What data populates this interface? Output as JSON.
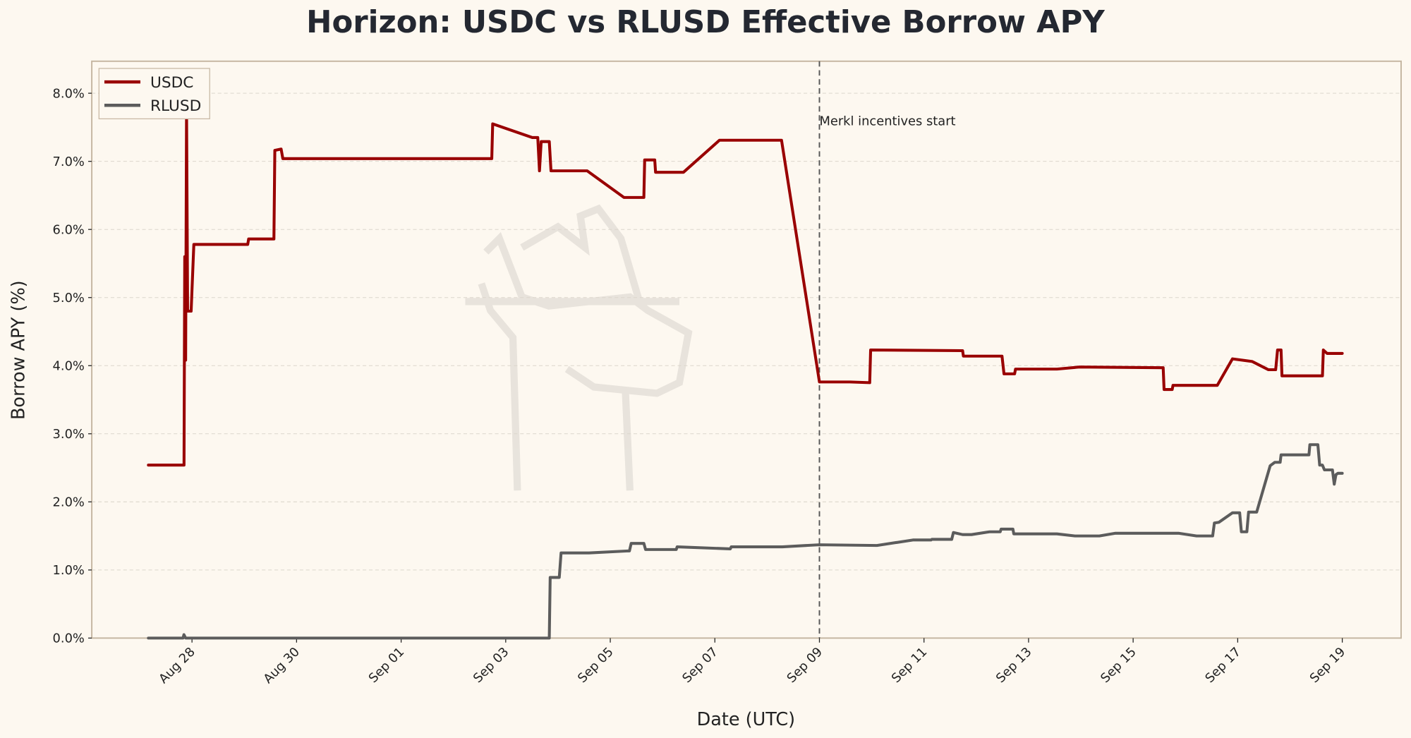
{
  "chart_data": {
    "type": "line",
    "title": "Horizon: USDC vs RLUSD Effective Borrow APY",
    "xlabel": "Date (UTC)",
    "ylabel": "Borrow APY (%)",
    "ylim": [
      0,
      8.47
    ],
    "xlim": [
      "08-26 02:00",
      "09-20 03:00"
    ],
    "grid": "y-dashed",
    "legend": "top-left",
    "x_ticks": [
      "Aug 28",
      "Aug 30",
      "Sep 01",
      "Sep 03",
      "Sep 05",
      "Sep 07",
      "Sep 09",
      "Sep 11",
      "Sep 13",
      "Sep 15",
      "Sep 17",
      "Sep 19"
    ],
    "x_tick_values": [
      "08-28 00:00",
      "08-30 00:00",
      "09-01 00:00",
      "09-03 00:00",
      "09-05 00:00",
      "09-07 00:00",
      "09-09 00:00",
      "09-11 00:00",
      "09-13 00:00",
      "09-15 00:00",
      "09-17 00:00",
      "09-19 00:00"
    ],
    "y_ticks": [
      "0.0%",
      "1.0%",
      "2.0%",
      "3.0%",
      "4.0%",
      "5.0%",
      "6.0%",
      "7.0%",
      "8.0%"
    ],
    "y_tick_values": [
      0,
      1,
      2,
      3,
      4,
      5,
      6,
      7,
      8
    ],
    "annotation": {
      "text": "Merkl incentives start",
      "x": "09-09 00:00"
    },
    "series": [
      {
        "name": "USDC",
        "color": "#990000",
        "points": [
          [
            "08-27 04:00",
            2.54
          ],
          [
            "08-27 20:20",
            2.54
          ],
          [
            "08-27 20:40",
            5.6
          ],
          [
            "08-27 21:05",
            4.08
          ],
          [
            "08-27 21:30",
            7.75
          ],
          [
            "08-27 22:00",
            4.8
          ],
          [
            "08-27 23:35",
            4.8
          ],
          [
            "08-28 00:50",
            5.78
          ],
          [
            "08-29 01:36",
            5.78
          ],
          [
            "08-29 02:00",
            5.86
          ],
          [
            "08-29 13:36",
            5.86
          ],
          [
            "08-29 14:00",
            7.16
          ],
          [
            "08-29 16:54",
            7.18
          ],
          [
            "08-29 17:42",
            7.04
          ],
          [
            "09-02 17:36",
            7.04
          ],
          [
            "09-02 18:00",
            7.55
          ],
          [
            "09-03 12:12",
            7.35
          ],
          [
            "09-03 14:42",
            7.35
          ],
          [
            "09-03 15:30",
            6.86
          ],
          [
            "09-03 16:18",
            7.29
          ],
          [
            "09-03 20:00",
            7.29
          ],
          [
            "09-03 20:48",
            6.86
          ],
          [
            "09-04 13:24",
            6.86
          ],
          [
            "09-05 06:18",
            6.47
          ],
          [
            "09-05 15:24",
            6.47
          ],
          [
            "09-05 15:48",
            7.02
          ],
          [
            "09-05 20:24",
            7.02
          ],
          [
            "09-05 20:48",
            6.84
          ],
          [
            "09-06 09:36",
            6.84
          ],
          [
            "09-07 02:06",
            7.31
          ],
          [
            "09-08 06:36",
            7.31
          ],
          [
            "09-09 00:00",
            3.76
          ],
          [
            "09-09 14:00",
            3.76
          ],
          [
            "09-09 23:06",
            3.75
          ],
          [
            "09-09 23:30",
            4.23
          ],
          [
            "09-11 17:42",
            4.22
          ],
          [
            "09-11 18:06",
            4.14
          ],
          [
            "09-12 11:48",
            4.14
          ],
          [
            "09-12 12:42",
            3.88
          ],
          [
            "09-12 17:36",
            3.88
          ],
          [
            "09-12 18:00",
            3.95
          ],
          [
            "09-13 13:00",
            3.95
          ],
          [
            "09-13 23:24",
            3.98
          ],
          [
            "09-15 13:48",
            3.97
          ],
          [
            "09-15 14:12",
            3.65
          ],
          [
            "09-15 17:54",
            3.65
          ],
          [
            "09-15 18:18",
            3.71
          ],
          [
            "09-16 14:36",
            3.71
          ],
          [
            "09-16 21:36",
            4.1
          ],
          [
            "09-17 06:42",
            4.06
          ],
          [
            "09-17 14:06",
            3.94
          ],
          [
            "09-17 17:24",
            3.94
          ],
          [
            "09-17 18:18",
            4.23
          ],
          [
            "09-17 19:54",
            4.23
          ],
          [
            "09-17 20:18",
            3.85
          ],
          [
            "09-18 14:54",
            3.85
          ],
          [
            "09-18 15:18",
            4.23
          ],
          [
            "09-18 17:00",
            4.18
          ],
          [
            "09-19 00:00",
            4.18
          ]
        ]
      },
      {
        "name": "RLUSD",
        "color": "#5c5c5c",
        "points": [
          [
            "08-27 04:00",
            0
          ],
          [
            "08-27 19:54",
            0
          ],
          [
            "08-27 20:18",
            0.05
          ],
          [
            "08-27 21:06",
            0
          ],
          [
            "09-03 20:00",
            0
          ],
          [
            "09-03 20:24",
            0.89
          ],
          [
            "09-04 00:36",
            0.89
          ],
          [
            "09-04 01:24",
            1.25
          ],
          [
            "09-04 14:12",
            1.25
          ],
          [
            "09-05 08:48",
            1.28
          ],
          [
            "09-05 09:36",
            1.39
          ],
          [
            "09-05 15:24",
            1.39
          ],
          [
            "09-05 16:12",
            1.3
          ],
          [
            "09-06 06:18",
            1.3
          ],
          [
            "09-06 06:42",
            1.34
          ],
          [
            "09-07 07:06",
            1.31
          ],
          [
            "09-07 07:30",
            1.34
          ],
          [
            "09-08 07:00",
            1.34
          ],
          [
            "09-09 00:00",
            1.37
          ],
          [
            "09-10 02:24",
            1.36
          ],
          [
            "09-10 18:54",
            1.44
          ],
          [
            "09-11 03:12",
            1.44
          ],
          [
            "09-11 03:36",
            1.45
          ],
          [
            "09-11 12:42",
            1.45
          ],
          [
            "09-11 13:30",
            1.55
          ],
          [
            "09-11 17:42",
            1.52
          ],
          [
            "09-11 21:48",
            1.52
          ],
          [
            "09-12 06:06",
            1.56
          ],
          [
            "09-12 11:00",
            1.56
          ],
          [
            "09-12 11:24",
            1.6
          ],
          [
            "09-12 16:48",
            1.6
          ],
          [
            "09-12 17:12",
            1.53
          ],
          [
            "09-13 13:00",
            1.53
          ],
          [
            "09-13 21:18",
            1.5
          ],
          [
            "09-14 08:30",
            1.5
          ],
          [
            "09-14 15:54",
            1.54
          ],
          [
            "09-15 20:48",
            1.54
          ],
          [
            "09-16 05:06",
            1.5
          ],
          [
            "09-16 12:30",
            1.5
          ],
          [
            "09-16 13:18",
            1.69
          ],
          [
            "09-16 15:24",
            1.7
          ],
          [
            "09-16 21:36",
            1.84
          ],
          [
            "09-17 00:54",
            1.84
          ],
          [
            "09-17 01:42",
            1.56
          ],
          [
            "09-17 04:12",
            1.56
          ],
          [
            "09-17 05:00",
            1.85
          ],
          [
            "09-17 08:42",
            1.85
          ],
          [
            "09-17 14:54",
            2.53
          ],
          [
            "09-17 17:00",
            2.58
          ],
          [
            "09-17 19:30",
            2.58
          ],
          [
            "09-17 19:54",
            2.69
          ],
          [
            "09-18 08:42",
            2.69
          ],
          [
            "09-18 09:06",
            2.84
          ],
          [
            "09-18 12:48",
            2.84
          ],
          [
            "09-18 13:36",
            2.54
          ],
          [
            "09-18 14:54",
            2.54
          ],
          [
            "09-18 15:48",
            2.47
          ],
          [
            "09-18 19:30",
            2.47
          ],
          [
            "09-18 20:18",
            2.26
          ],
          [
            "09-18 21:06",
            2.4
          ],
          [
            "09-18 22:00",
            2.42
          ],
          [
            "09-19 00:00",
            2.42
          ]
        ]
      }
    ]
  }
}
